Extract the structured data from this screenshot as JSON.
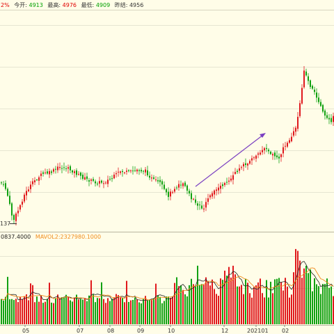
{
  "header": {
    "change_fragment": "2%",
    "items": [
      {
        "label": "今开:",
        "value": "4913",
        "value_color": "#00a000"
      },
      {
        "label": "最高:",
        "value": "4976",
        "value_color": "#e00000"
      },
      {
        "label": "最低:",
        "value": "4909",
        "value_color": "#00a000"
      },
      {
        "label": "昨结:",
        "value": "4956",
        "value_color": "#333333"
      }
    ]
  },
  "price_panel": {
    "low_marker_label": "137"
  },
  "volume_panel": {
    "mavol1_fragment": "0837.4000",
    "mavol2_label": "MAVOL2:2327980.1000"
  },
  "x_axis": {
    "ticks": [
      "05",
      "07",
      "08",
      "09",
      "10",
      "12",
      "202101",
      "02"
    ]
  },
  "colors": {
    "background": "#fffde8",
    "up": "#e0181c",
    "down": "#11a111",
    "grid": "#e6e6d2",
    "mavol1": "#222222",
    "mavol2": "#f08c1e",
    "trend_arrow": "#7a3fc1"
  }
}
